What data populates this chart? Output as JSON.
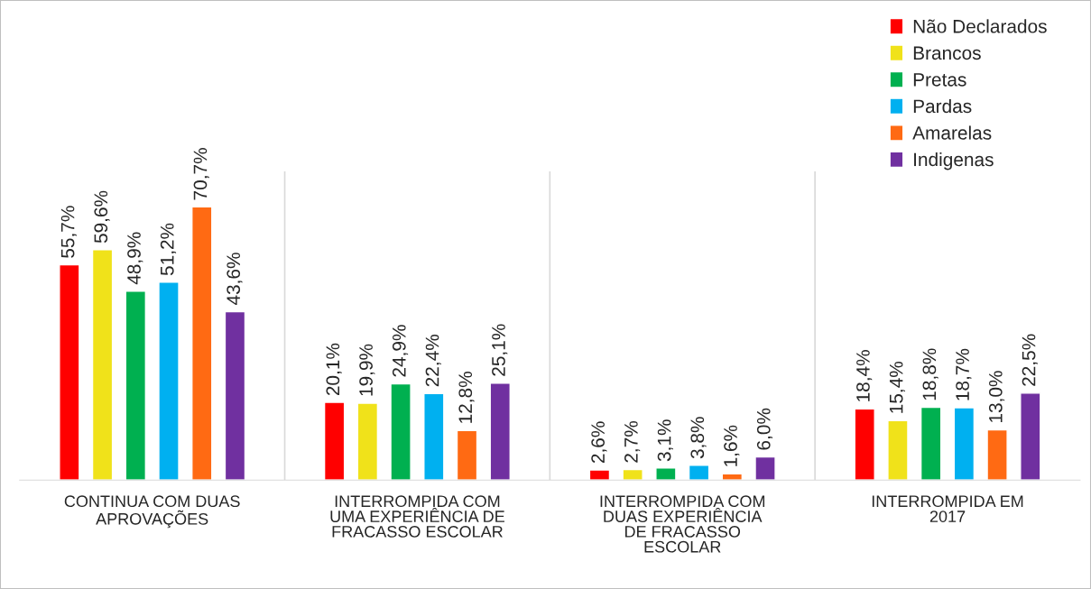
{
  "chart_data": {
    "type": "bar",
    "categories": [
      "CONTINUA COM DUAS\nAPROVAÇÕES",
      "INTERROMPIDA COM\nUMA EXPERIÊNCIA DE\nFRACASSO ESCOLAR",
      "INTERROMPIDA COM\nDUAS EXPERIÊNCIA\nDE FRACASSO\nESCOLAR",
      "INTERROMPIDA EM\n2017"
    ],
    "series": [
      {
        "name": "Não Declarados",
        "color": "#ff0000",
        "values": [
          55.7,
          20.1,
          2.6,
          18.4
        ],
        "value_labels": [
          "55,7%",
          "20,1%",
          "2,6%",
          "18,4%"
        ]
      },
      {
        "name": "Brancos",
        "color": "#f0e21a",
        "values": [
          59.6,
          19.9,
          2.7,
          15.4
        ],
        "value_labels": [
          "59,6%",
          "19,9%",
          "2,7%",
          "15,4%"
        ]
      },
      {
        "name": "Pretas",
        "color": "#00b050",
        "values": [
          48.9,
          24.9,
          3.1,
          18.8
        ],
        "value_labels": [
          "48,9%",
          "24,9%",
          "3,1%",
          "18,8%"
        ]
      },
      {
        "name": "Pardas",
        "color": "#00b0f0",
        "values": [
          51.2,
          22.4,
          3.8,
          18.7
        ],
        "value_labels": [
          "51,2%",
          "22,4%",
          "3,8%",
          "18,7%"
        ]
      },
      {
        "name": "Amarelas",
        "color": "#ff6a13",
        "values": [
          70.7,
          12.8,
          1.6,
          13.0
        ],
        "value_labels": [
          "70,7%",
          "12,8%",
          "1,6%",
          "13,0%"
        ]
      },
      {
        "name": "Indigenas",
        "color": "#7030a0",
        "values": [
          43.6,
          25.1,
          6.0,
          22.5
        ],
        "value_labels": [
          "43,6%",
          "25,1%",
          "6,0%",
          "22,5%"
        ]
      }
    ],
    "grid": "x",
    "legend": "top right",
    "tick_labels": "x"
  }
}
